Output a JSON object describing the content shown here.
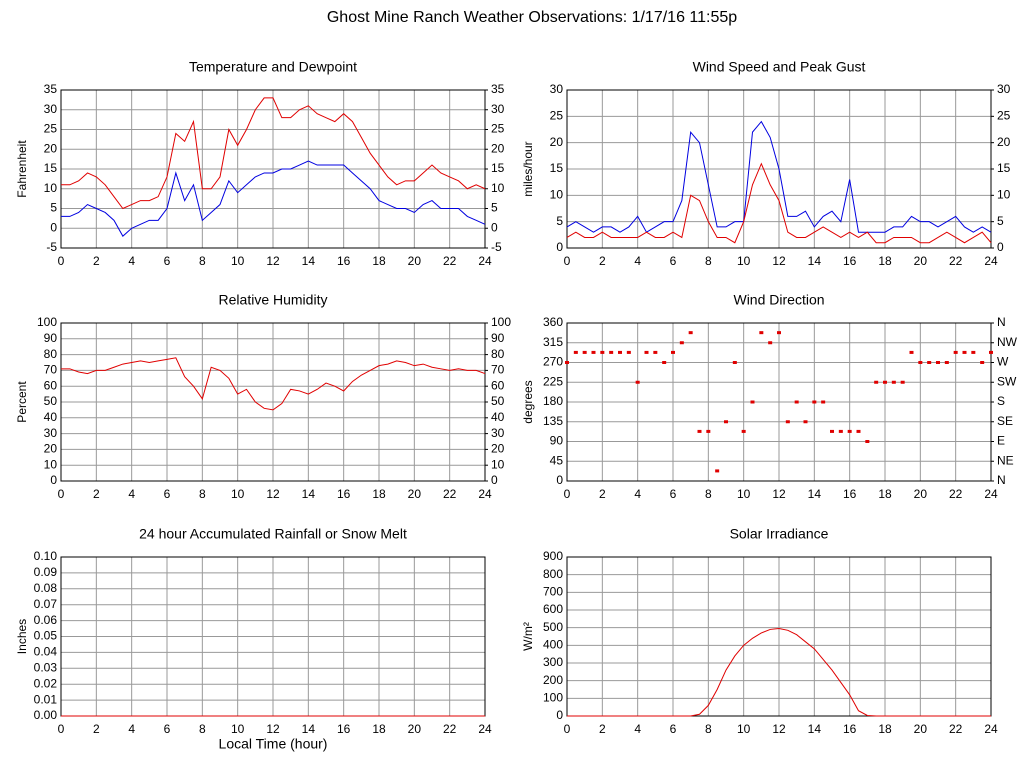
{
  "title": "Ghost Mine Ranch Weather Observations: 1/17/16 11:55p",
  "chart_data": [
    {
      "type": "line",
      "title": "Temperature and Dewpoint",
      "ylabel": "Fahrenheit",
      "x": [
        0,
        0.5,
        1,
        1.5,
        2,
        2.5,
        3,
        3.5,
        4,
        4.5,
        5,
        5.5,
        6,
        6.5,
        7,
        7.5,
        8,
        8.5,
        9,
        9.5,
        10,
        10.5,
        11,
        11.5,
        12,
        12.5,
        13,
        13.5,
        14,
        14.5,
        15,
        15.5,
        16,
        16.5,
        17,
        17.5,
        18,
        18.5,
        19,
        19.5,
        20,
        20.5,
        21,
        21.5,
        22,
        22.5,
        23,
        23.5,
        24
      ],
      "series": [
        {
          "color": "#e00000",
          "values": [
            11,
            11,
            12,
            14,
            13,
            11,
            8,
            5,
            6,
            7,
            7,
            8,
            13,
            24,
            22,
            27,
            10,
            10,
            13,
            25,
            21,
            25,
            30,
            33,
            33,
            28,
            28,
            30,
            31,
            29,
            28,
            27,
            29,
            27,
            23,
            19,
            16,
            13,
            11,
            12,
            12,
            14,
            16,
            14,
            13,
            12,
            10,
            11,
            10
          ]
        },
        {
          "color": "#0000e0",
          "values": [
            3,
            3,
            4,
            6,
            5,
            4,
            2,
            -2,
            0,
            1,
            2,
            2,
            5,
            14,
            7,
            11,
            2,
            4,
            6,
            12,
            9,
            11,
            13,
            14,
            14,
            15,
            15,
            16,
            17,
            16,
            16,
            16,
            16,
            14,
            12,
            10,
            7,
            6,
            5,
            5,
            4,
            6,
            7,
            5,
            5,
            5,
            3,
            2,
            1
          ]
        }
      ],
      "xlim": [
        0,
        24
      ],
      "xticks": [
        0,
        2,
        4,
        6,
        8,
        10,
        12,
        14,
        16,
        18,
        20,
        22,
        24
      ],
      "ylim": [
        -5,
        35
      ],
      "yticks": [
        -5,
        0,
        5,
        10,
        15,
        20,
        25,
        30,
        35
      ],
      "y2lim": [
        -5,
        35
      ],
      "y2ticks": [
        -5,
        0,
        5,
        10,
        15,
        20,
        25,
        30,
        35
      ],
      "grid": true
    },
    {
      "type": "line",
      "title": "Wind Speed and Peak Gust",
      "ylabel": "miles/hour",
      "x": [
        0,
        0.5,
        1,
        1.5,
        2,
        2.5,
        3,
        3.5,
        4,
        4.5,
        5,
        5.5,
        6,
        6.5,
        7,
        7.5,
        8,
        8.5,
        9,
        9.5,
        10,
        10.5,
        11,
        11.5,
        12,
        12.5,
        13,
        13.5,
        14,
        14.5,
        15,
        15.5,
        16,
        16.5,
        17,
        17.5,
        18,
        18.5,
        19,
        19.5,
        20,
        20.5,
        21,
        21.5,
        22,
        22.5,
        23,
        23.5,
        24
      ],
      "series": [
        {
          "color": "#0000e0",
          "values": [
            4,
            5,
            4,
            3,
            4,
            4,
            3,
            4,
            6,
            3,
            4,
            5,
            5,
            9,
            22,
            20,
            12,
            4,
            4,
            5,
            5,
            22,
            24,
            21,
            15,
            6,
            6,
            7,
            4,
            6,
            7,
            5,
            13,
            3,
            3,
            3,
            3,
            4,
            4,
            6,
            5,
            5,
            4,
            5,
            6,
            4,
            3,
            4,
            3
          ]
        },
        {
          "color": "#e00000",
          "values": [
            2,
            3,
            2,
            2,
            3,
            2,
            2,
            2,
            2,
            3,
            2,
            2,
            3,
            2,
            10,
            9,
            5,
            2,
            2,
            1,
            5,
            12,
            16,
            12,
            9,
            3,
            2,
            2,
            3,
            4,
            3,
            2,
            3,
            2,
            3,
            1,
            1,
            2,
            2,
            2,
            1,
            1,
            2,
            3,
            2,
            1,
            2,
            3,
            1
          ]
        }
      ],
      "xlim": [
        0,
        24
      ],
      "xticks": [
        0,
        2,
        4,
        6,
        8,
        10,
        12,
        14,
        16,
        18,
        20,
        22,
        24
      ],
      "ylim": [
        0,
        30
      ],
      "yticks": [
        0,
        5,
        10,
        15,
        20,
        25,
        30
      ],
      "y2lim": [
        0,
        30
      ],
      "y2ticks": [
        0,
        5,
        10,
        15,
        20,
        25,
        30
      ],
      "grid": true
    },
    {
      "type": "line",
      "title": "Relative Humidity",
      "ylabel": "Percent",
      "x": [
        0,
        0.5,
        1,
        1.5,
        2,
        2.5,
        3,
        3.5,
        4,
        4.5,
        5,
        5.5,
        6,
        6.5,
        7,
        7.5,
        8,
        8.5,
        9,
        9.5,
        10,
        10.5,
        11,
        11.5,
        12,
        12.5,
        13,
        13.5,
        14,
        14.5,
        15,
        15.5,
        16,
        16.5,
        17,
        17.5,
        18,
        18.5,
        19,
        19.5,
        20,
        20.5,
        21,
        21.5,
        22,
        22.5,
        23,
        23.5,
        24
      ],
      "series": [
        {
          "color": "#e00000",
          "values": [
            71,
            71,
            69,
            68,
            70,
            70,
            72,
            74,
            75,
            76,
            75,
            76,
            77,
            78,
            66,
            60,
            52,
            72,
            70,
            65,
            55,
            58,
            50,
            46,
            45,
            49,
            58,
            57,
            55,
            58,
            62,
            60,
            57,
            63,
            67,
            70,
            73,
            74,
            76,
            75,
            73,
            74,
            72,
            71,
            70,
            71,
            70,
            70,
            68
          ]
        }
      ],
      "xlim": [
        0,
        24
      ],
      "xticks": [
        0,
        2,
        4,
        6,
        8,
        10,
        12,
        14,
        16,
        18,
        20,
        22,
        24
      ],
      "ylim": [
        0,
        100
      ],
      "yticks": [
        0,
        10,
        20,
        30,
        40,
        50,
        60,
        70,
        80,
        90,
        100
      ],
      "y2lim": [
        0,
        100
      ],
      "y2ticks": [
        0,
        10,
        20,
        30,
        40,
        50,
        60,
        70,
        80,
        90,
        100
      ],
      "grid": true
    },
    {
      "type": "scatter",
      "title": "Wind Direction",
      "ylabel": "degrees",
      "x": [
        0,
        0.5,
        1,
        1.5,
        2,
        2.5,
        3,
        3.5,
        4,
        4.5,
        5,
        5.5,
        6,
        6.5,
        7,
        7.5,
        8,
        8.5,
        9,
        9.5,
        10,
        10.5,
        11,
        11.5,
        12,
        12.5,
        13,
        13.5,
        14,
        14.5,
        15,
        15.5,
        16,
        16.5,
        17,
        17.5,
        18,
        18.5,
        19,
        19.5,
        20,
        20.5,
        21,
        21.5,
        22,
        22.5,
        23,
        23.5,
        24
      ],
      "series": [
        {
          "color": "#e00000",
          "values": [
            270,
            293,
            293,
            293,
            293,
            293,
            293,
            293,
            225,
            293,
            293,
            270,
            293,
            315,
            338,
            113,
            113,
            23,
            135,
            270,
            113,
            180,
            338,
            315,
            338,
            135,
            180,
            135,
            180,
            180,
            113,
            113,
            113,
            113,
            90,
            225,
            225,
            225,
            225,
            293,
            270,
            270,
            270,
            270,
            293,
            293,
            293,
            270,
            293
          ]
        }
      ],
      "xlim": [
        0,
        24
      ],
      "xticks": [
        0,
        2,
        4,
        6,
        8,
        10,
        12,
        14,
        16,
        18,
        20,
        22,
        24
      ],
      "ylim": [
        0,
        360
      ],
      "yticks": [
        0,
        45,
        90,
        135,
        180,
        225,
        270,
        315,
        360
      ],
      "y2lim": [
        0,
        360
      ],
      "y2ticks": [
        {
          "value": 0,
          "label": "N"
        },
        {
          "value": 45,
          "label": "NE"
        },
        {
          "value": 90,
          "label": "E"
        },
        {
          "value": 135,
          "label": "SE"
        },
        {
          "value": 180,
          "label": "S"
        },
        {
          "value": 225,
          "label": "SW"
        },
        {
          "value": 270,
          "label": "W"
        },
        {
          "value": 315,
          "label": "NW"
        },
        {
          "value": 360,
          "label": "N"
        }
      ],
      "grid": true
    },
    {
      "type": "line",
      "title": "24 hour Accumulated Rainfall or Snow Melt",
      "ylabel": "Inches",
      "xlabel": "Local Time (hour)",
      "x": [
        0,
        24
      ],
      "series": [
        {
          "color": "#e00000",
          "values": [
            0,
            0
          ]
        }
      ],
      "xlim": [
        0,
        24
      ],
      "xticks": [
        0,
        2,
        4,
        6,
        8,
        10,
        12,
        14,
        16,
        18,
        20,
        22,
        24
      ],
      "ylim": [
        0,
        0.1
      ],
      "yticks": [
        {
          "value": 0,
          "label": "0.00"
        },
        {
          "value": 0.01,
          "label": "0.01"
        },
        {
          "value": 0.02,
          "label": "0.02"
        },
        {
          "value": 0.03,
          "label": "0.03"
        },
        {
          "value": 0.04,
          "label": "0.04"
        },
        {
          "value": 0.05,
          "label": "0.05"
        },
        {
          "value": 0.06,
          "label": "0.06"
        },
        {
          "value": 0.07,
          "label": "0.07"
        },
        {
          "value": 0.08,
          "label": "0.08"
        },
        {
          "value": 0.09,
          "label": "0.09"
        },
        {
          "value": 0.1,
          "label": "0.10"
        }
      ],
      "grid": true
    },
    {
      "type": "line",
      "title": "Solar Irradiance",
      "ylabel": "W/m²",
      "x": [
        0,
        0.5,
        1,
        1.5,
        2,
        2.5,
        3,
        3.5,
        4,
        4.5,
        5,
        5.5,
        6,
        6.5,
        7,
        7.5,
        8,
        8.5,
        9,
        9.5,
        10,
        10.5,
        11,
        11.5,
        12,
        12.5,
        13,
        13.5,
        14,
        14.5,
        15,
        15.5,
        16,
        16.5,
        17,
        17.5,
        18,
        18.5,
        19,
        19.5,
        20,
        20.5,
        21,
        21.5,
        22,
        22.5,
        23,
        23.5,
        24
      ],
      "series": [
        {
          "color": "#e00000",
          "values": [
            0,
            0,
            0,
            0,
            0,
            0,
            0,
            0,
            0,
            0,
            0,
            0,
            0,
            0,
            0,
            10,
            60,
            150,
            260,
            340,
            400,
            440,
            470,
            490,
            495,
            485,
            460,
            420,
            380,
            320,
            260,
            190,
            120,
            30,
            3,
            0,
            0,
            0,
            0,
            0,
            0,
            0,
            0,
            0,
            0,
            0,
            0,
            0,
            0
          ]
        }
      ],
      "xlim": [
        0,
        24
      ],
      "xticks": [
        0,
        2,
        4,
        6,
        8,
        10,
        12,
        14,
        16,
        18,
        20,
        22,
        24
      ],
      "ylim": [
        0,
        900
      ],
      "yticks": [
        0,
        100,
        200,
        300,
        400,
        500,
        600,
        700,
        800,
        900
      ],
      "grid": true
    }
  ]
}
